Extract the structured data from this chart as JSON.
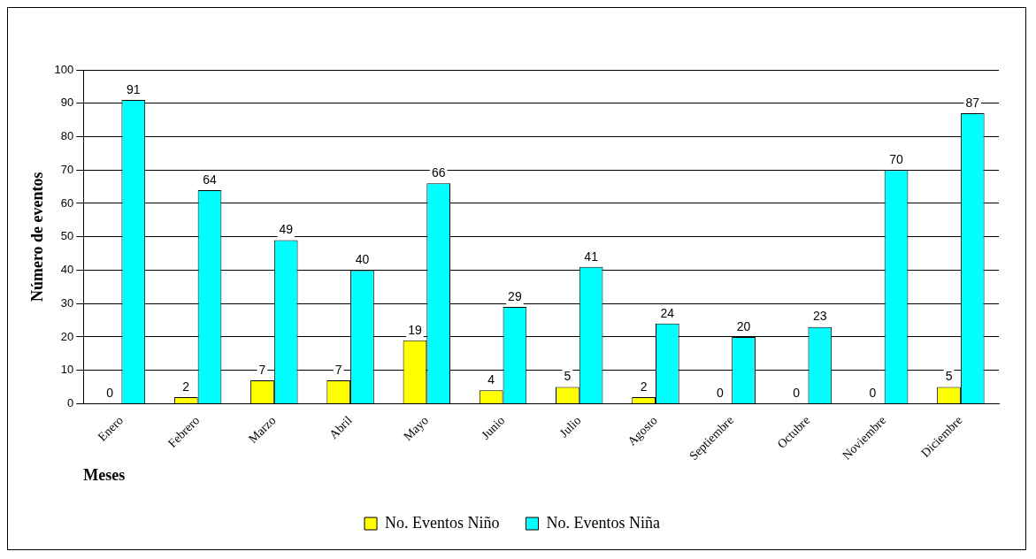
{
  "chart_data": {
    "type": "bar",
    "ylabel": "Número de eventos",
    "xlabel": "Meses",
    "categories": [
      "Enero",
      "Febrero",
      "Marzo",
      "Abril",
      "Mayo",
      "Junio",
      "Julio",
      "Agosto",
      "Septiembre",
      "Octubre",
      "Noviembre",
      "Diciembre"
    ],
    "series": [
      {
        "name": "No. Eventos Niño",
        "color": "#ffff00",
        "values": [
          0,
          2,
          7,
          7,
          19,
          4,
          5,
          2,
          0,
          0,
          0,
          5
        ]
      },
      {
        "name": "No. Eventos Niña",
        "color": "#00ffff",
        "values": [
          91,
          64,
          49,
          40,
          66,
          29,
          41,
          24,
          20,
          23,
          70,
          87
        ]
      }
    ],
    "ylim": [
      0,
      100
    ],
    "yticks": [
      0,
      10,
      20,
      30,
      40,
      50,
      60,
      70,
      80,
      90,
      100
    ],
    "grid": "y",
    "legend": "bottom",
    "data_labels": true
  }
}
